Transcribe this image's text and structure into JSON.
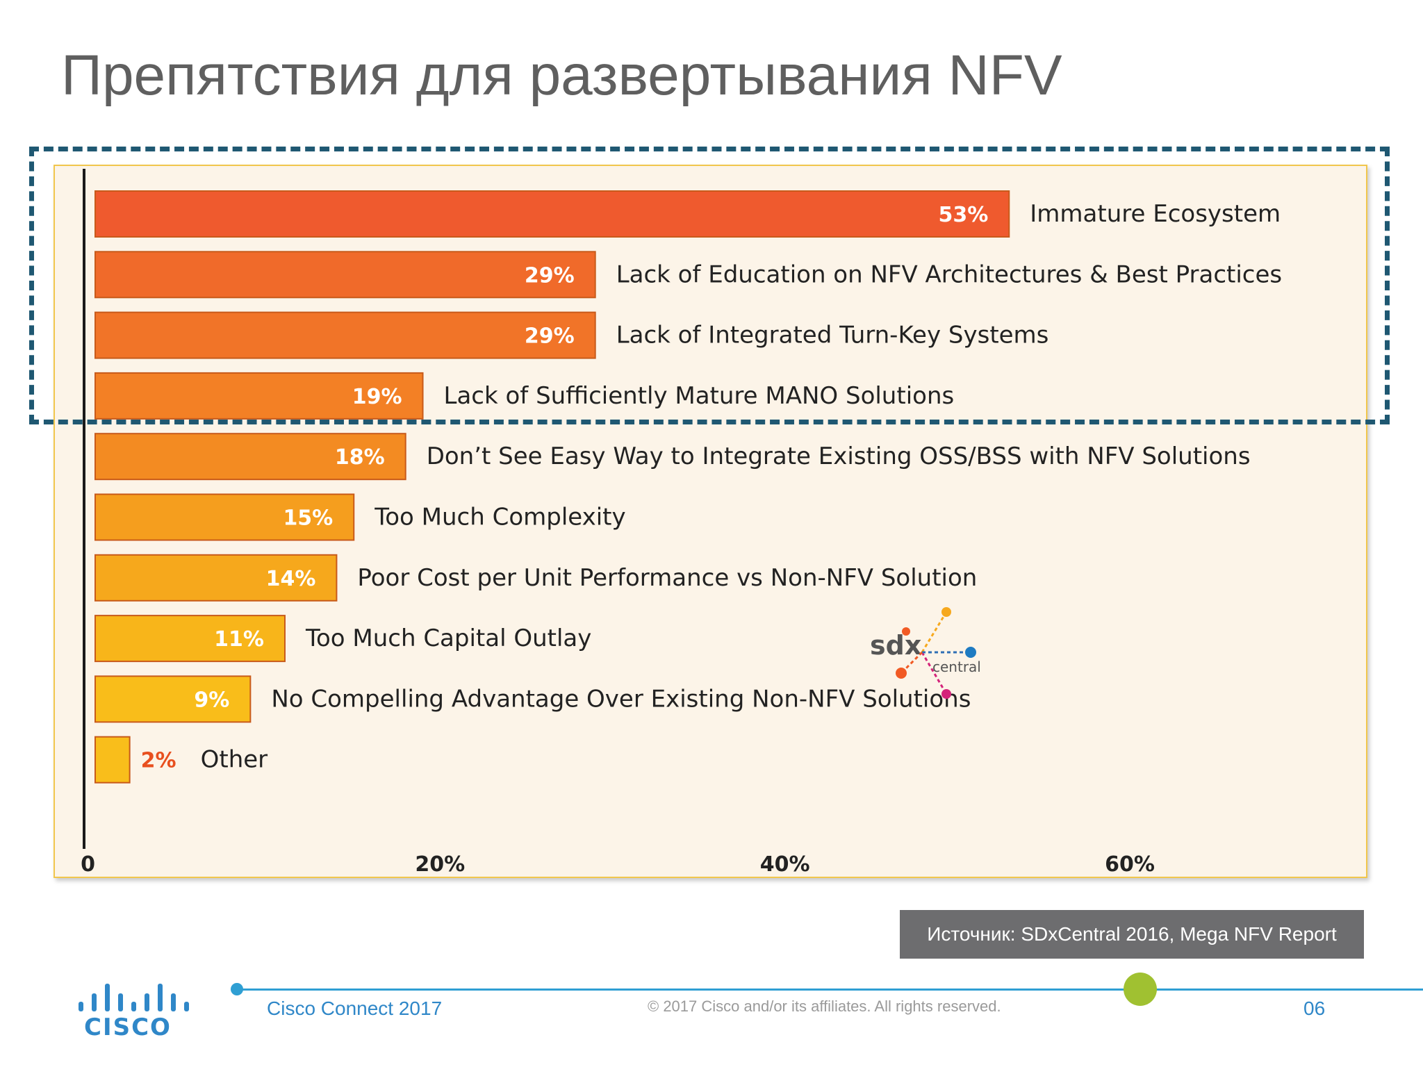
{
  "slide": {
    "title": "Препятствия для развертывания NFV",
    "source": "Источник: SDxCentral 2016, Mega NFV Report",
    "event": "Cisco Connect 2017",
    "copyright": "© 2017  Cisco and/or its affiliates. All rights reserved.",
    "page": "06"
  },
  "logos": {
    "cisco_wordmark": "CISCO",
    "sdx_main": "sdx",
    "sdx_sub": "central",
    "brand_color": "#2f87c8"
  },
  "chart_data": {
    "type": "bar",
    "orientation": "horizontal",
    "categories": [
      "Immature Ecosystem",
      "Lack of Education on NFV Architectures & Best Practices",
      "Lack of Integrated Turn-Key Systems",
      "Lack of Sufficiently Mature MANO Solutions",
      "Don’t See Easy Way to Integrate Existing OSS/BSS with NFV Solutions",
      "Too Much Complexity",
      "Poor Cost per Unit Performance vs Non-NFV Solution",
      "Too Much Capital Outlay",
      "No Compelling Advantage Over Existing Non-NFV Solutions",
      "Other"
    ],
    "values": [
      53,
      29,
      29,
      19,
      18,
      15,
      14,
      11,
      9,
      2
    ],
    "value_labels": [
      "53%",
      "29%",
      "29%",
      "19%",
      "18%",
      "15%",
      "14%",
      "11%",
      "9%",
      "2%"
    ],
    "bar_colors": [
      "#ef5a2e",
      "#f06a2a",
      "#f17428",
      "#f38025",
      "#f38b22",
      "#f59e1e",
      "#f6a81c",
      "#f8b51a",
      "#f9bd1a",
      "#f9be1b"
    ],
    "x_ticks": [
      0,
      20,
      40,
      60
    ],
    "x_tick_labels": [
      "0",
      "20%",
      "40%",
      "60%"
    ],
    "xlim": [
      0,
      73.7
    ],
    "grid": false,
    "highlighted_categories": 4
  }
}
